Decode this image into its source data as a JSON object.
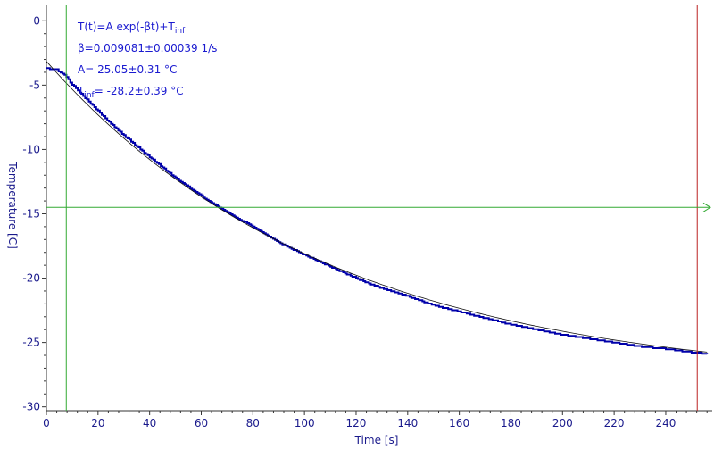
{
  "chart_data": {
    "type": "line",
    "xlabel": "Time [s]",
    "ylabel": "Temperature [C]",
    "xlim": [
      0,
      258
    ],
    "ylim": [
      -30.3,
      1.2
    ],
    "x_ticks": [
      0,
      20,
      40,
      60,
      80,
      100,
      120,
      140,
      160,
      180,
      200,
      220,
      240
    ],
    "y_ticks": [
      0,
      -5,
      -10,
      -15,
      -20,
      -25,
      -30
    ],
    "grid": false,
    "fit": {
      "model": "T(t)=A exp(-βt)+T_inf",
      "A": 25.05,
      "beta": 0.009081,
      "T_inf": -28.2
    },
    "annotations": {
      "line1": {
        "main": "T(t)=A exp(-βt)+T",
        "sub": "inf"
      },
      "line2": "β=0.009081±0.00039 1/s",
      "line3": "A= 25.05±0.31 °C",
      "line4": {
        "main": "T",
        "sub": "inf",
        "rest": "= -28.2±0.39 °C"
      }
    },
    "cursors": {
      "vertical_green_x": 7.7,
      "vertical_red_x": 252.2,
      "horizontal_green_y": -14.5
    },
    "series": [
      {
        "color": "#0000aa",
        "style": "step",
        "points": [
          [
            0,
            -3.7
          ],
          [
            4,
            -3.8
          ],
          [
            7,
            -4.2
          ],
          [
            10,
            -4.95
          ],
          [
            15,
            -6.0
          ],
          [
            20,
            -7.0
          ],
          [
            25,
            -8.0
          ],
          [
            30,
            -8.9
          ],
          [
            40,
            -10.6
          ],
          [
            50,
            -12.2
          ],
          [
            60,
            -13.6
          ],
          [
            70,
            -14.9
          ],
          [
            80,
            -16.0
          ],
          [
            90,
            -17.2
          ],
          [
            100,
            -18.2
          ],
          [
            110,
            -19.1
          ],
          [
            120,
            -20.0
          ],
          [
            130,
            -20.8
          ],
          [
            140,
            -21.4
          ],
          [
            150,
            -22.1
          ],
          [
            160,
            -22.6
          ],
          [
            170,
            -23.1
          ],
          [
            180,
            -23.6
          ],
          [
            190,
            -24.0
          ],
          [
            200,
            -24.4
          ],
          [
            210,
            -24.7
          ],
          [
            220,
            -25.0
          ],
          [
            230,
            -25.3
          ],
          [
            240,
            -25.5
          ],
          [
            250,
            -25.75
          ],
          [
            256,
            -25.9
          ]
        ]
      }
    ],
    "colors": {
      "axis": "#333333",
      "tick_text": "#1a1a8c",
      "annotation_text": "#1a1ad0",
      "data": "#0000aa",
      "fit_line": "#111111",
      "green_cursor": "#33aa33",
      "red_cursor": "#bb2222"
    }
  }
}
